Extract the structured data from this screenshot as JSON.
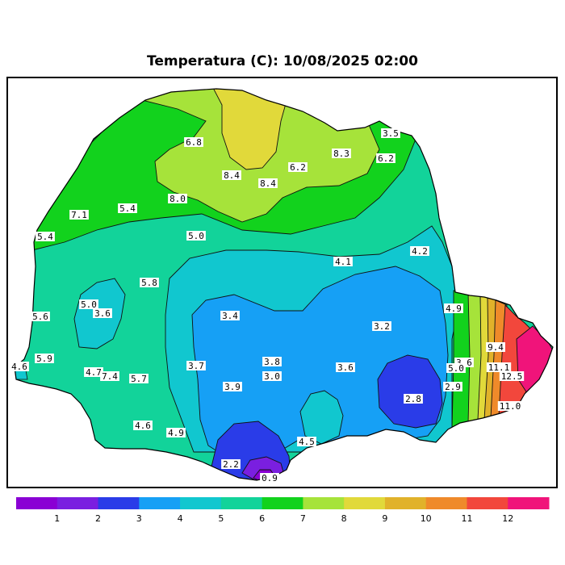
{
  "title": "Temperatura (C): 10/08/2025 02:00",
  "colors": {
    "frame": "#000000",
    "state_outline": "#000000",
    "contour_line": "#111111",
    "background": "#ffffff",
    "bands": {
      "0-1": "#8a00d4",
      "1-2": "#7a1fe0",
      "2-3": "#2a3ce8",
      "3-4": "#16a0f5",
      "4-5": "#11c7cf",
      "5-6": "#12d39a",
      "6-7": "#12d21d",
      "7-8": "#a6e33a",
      "8-9": "#e1d93a",
      "9-10": "#e1b22a",
      "10-11": "#ef8a2a",
      "11-12": "#f2473c",
      "12+": "#f0147a"
    }
  },
  "colorbar": {
    "colors": [
      "#8a00d4",
      "#7a1fe0",
      "#2a3ce8",
      "#16a0f5",
      "#11c7cf",
      "#12d39a",
      "#12d21d",
      "#a6e33a",
      "#e1d93a",
      "#e1b22a",
      "#ef8a2a",
      "#f2473c",
      "#f0147a"
    ],
    "ticks": [
      "1",
      "2",
      "3",
      "4",
      "5",
      "6",
      "7",
      "8",
      "9",
      "10",
      "11",
      "12"
    ]
  },
  "labels": [
    "6.8",
    "8.4",
    "8.4",
    "6.2",
    "8.3",
    "3.5",
    "6.2",
    "8.0",
    "7.1",
    "5.4",
    "5.4",
    "5.0",
    "4.1",
    "4.2",
    "5.8",
    "5.0",
    "3.6",
    "5.6",
    "3.4",
    "3.2",
    "4.9",
    "9.4",
    "3.6",
    "5.0",
    "11.1",
    "12.5",
    "5.9",
    "4.6",
    "4.7",
    "7.4",
    "5.7",
    "3.7",
    "3.8",
    "3.0",
    "3.6",
    "3.9",
    "2.9",
    "2.8",
    "11.0",
    "4.6",
    "4.9",
    "4.5",
    "2.2",
    "0.9"
  ]
}
